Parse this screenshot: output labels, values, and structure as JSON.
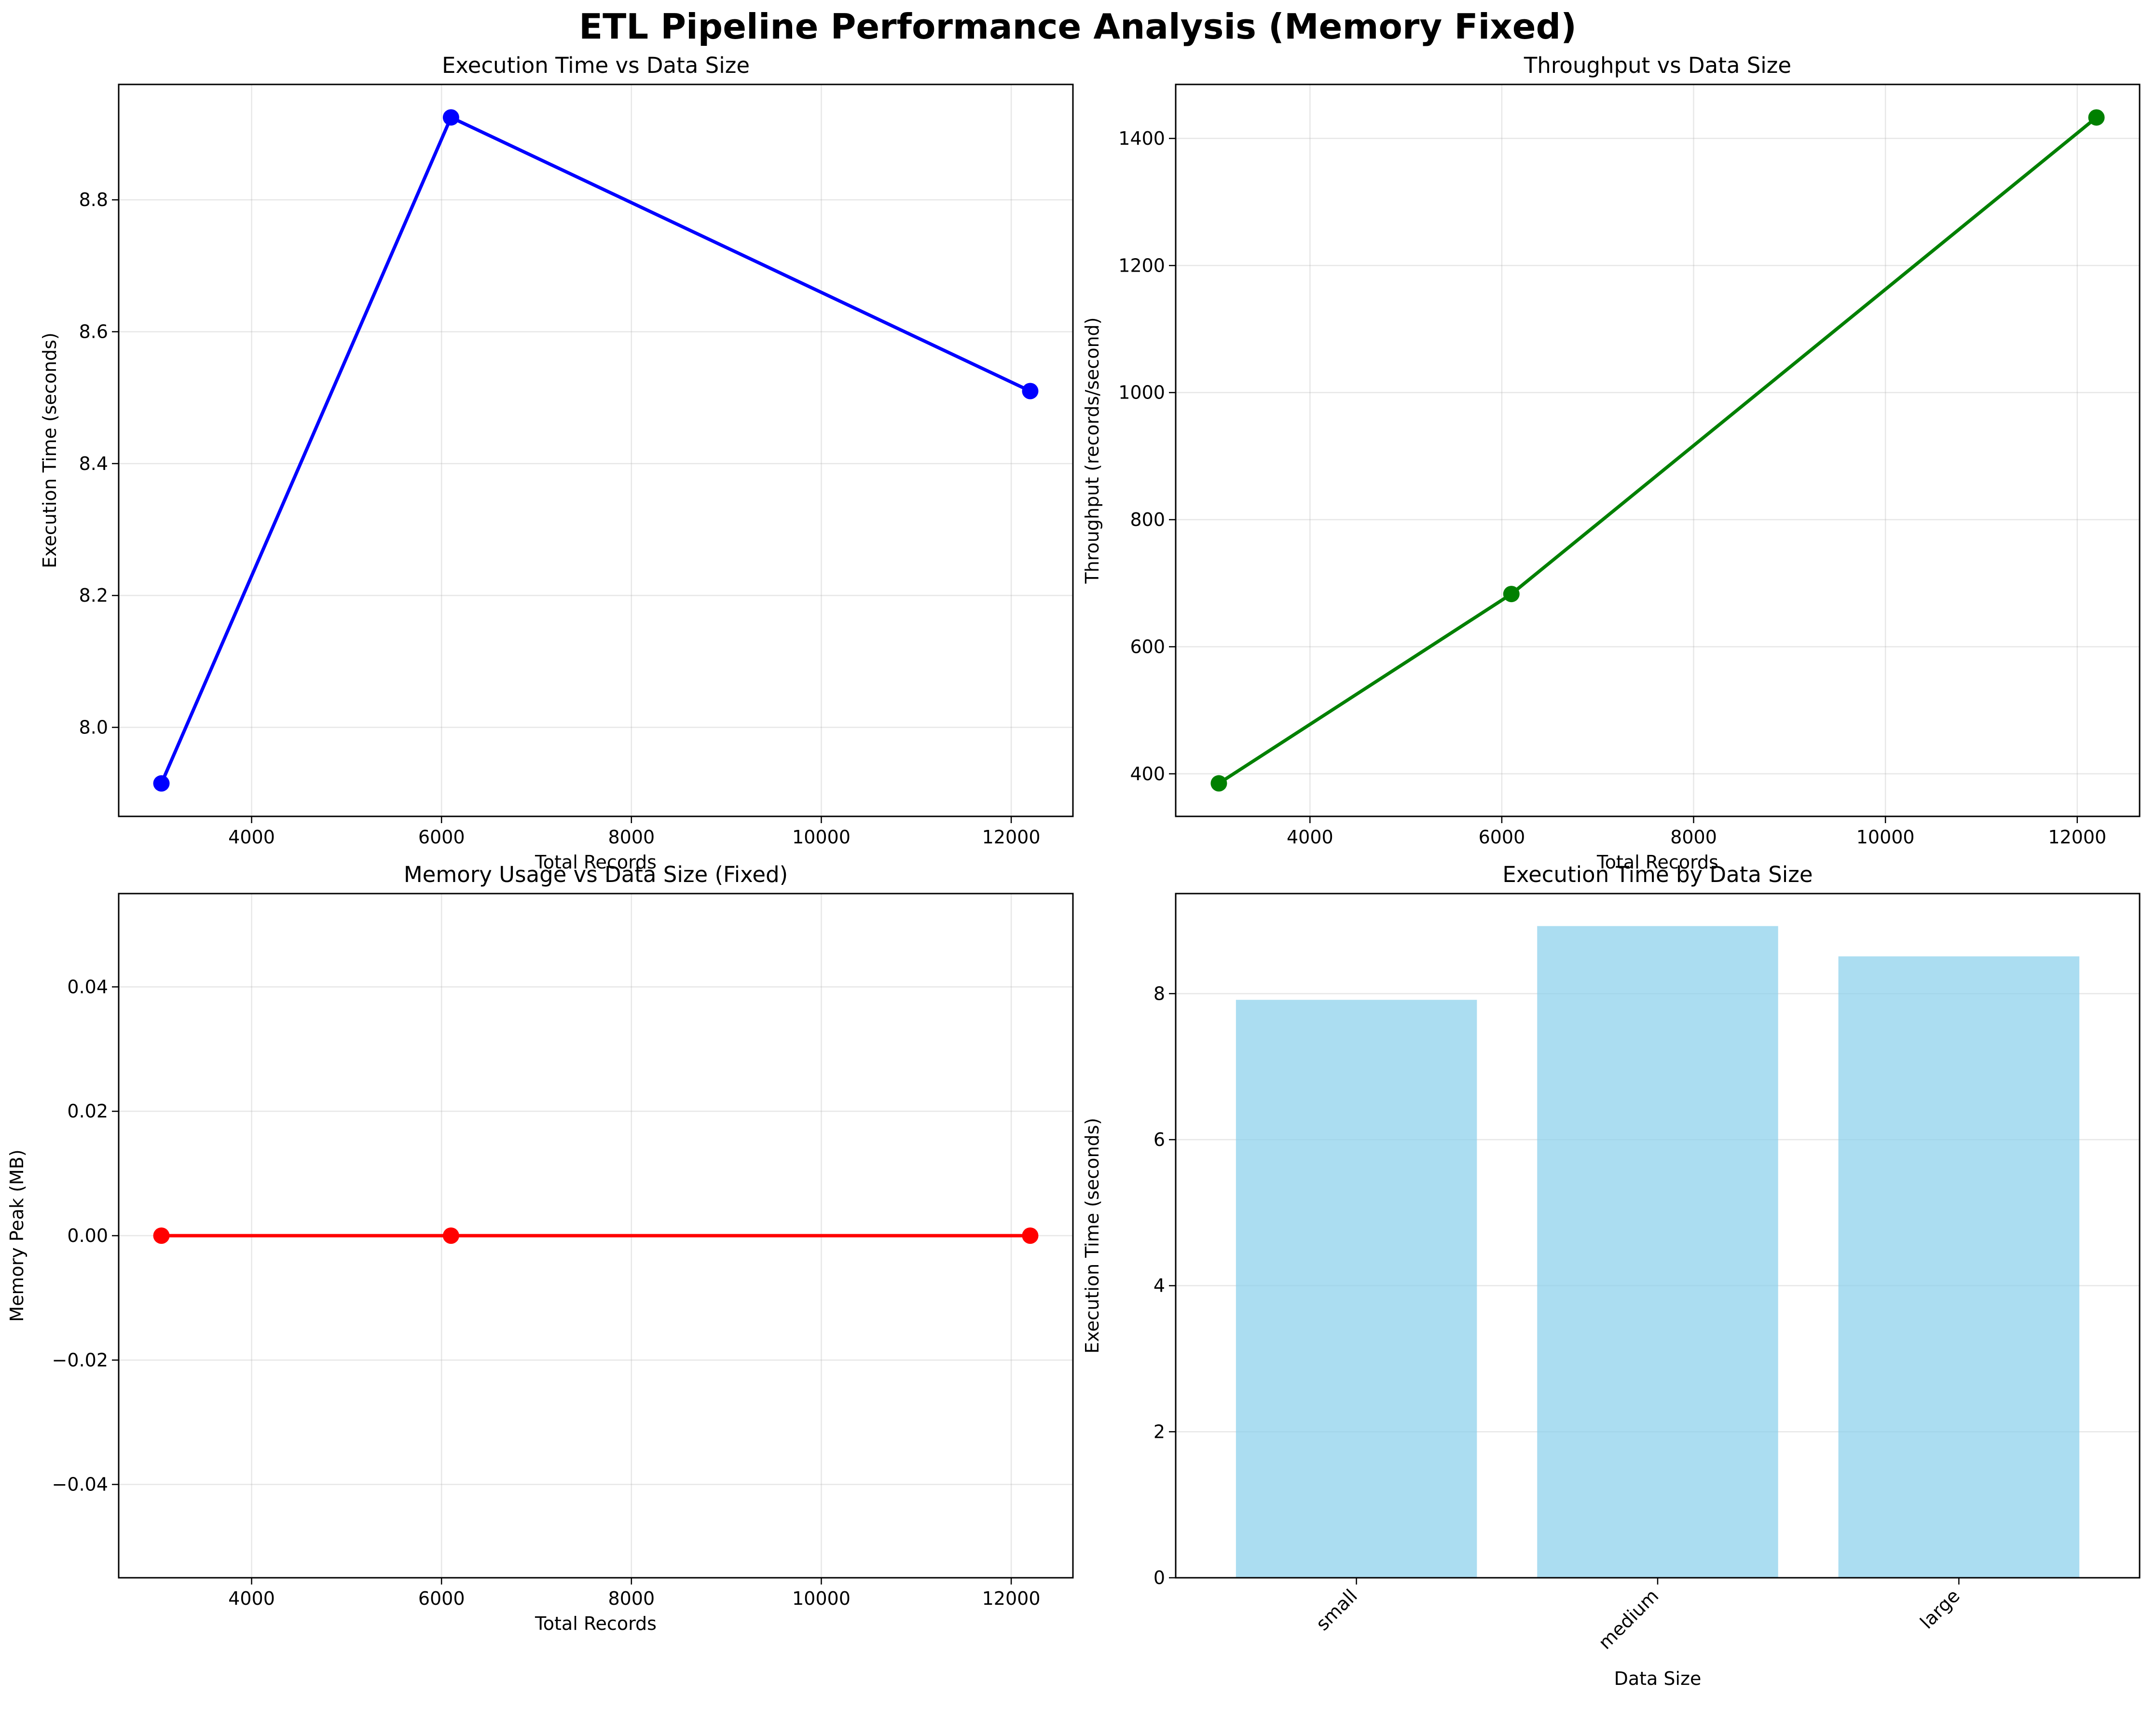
{
  "figure": {
    "title": "ETL Pipeline Performance Analysis (Memory Fixed)"
  },
  "chart_data": [
    {
      "type": "line",
      "title": "Execution Time vs Data Size",
      "xlabel": "Total Records",
      "ylabel": "Execution Time (seconds)",
      "x": [
        3050,
        6100,
        12200
      ],
      "series": [
        {
          "values": [
            7.915,
            8.925,
            8.51
          ],
          "color": "#0000ff"
        }
      ],
      "xlim": [
        2600,
        12650
      ],
      "ylim": [
        7.865,
        8.975
      ],
      "xticks": [
        4000,
        6000,
        8000,
        10000,
        12000
      ],
      "xtick_labels": [
        "4000",
        "6000",
        "8000",
        "10000",
        "12000"
      ],
      "yticks": [
        8.0,
        8.2,
        8.4,
        8.6,
        8.8
      ],
      "ytick_labels": [
        "8.0",
        "8.2",
        "8.4",
        "8.6",
        "8.8"
      ],
      "grid": true
    },
    {
      "type": "line",
      "title": "Throughput vs Data Size",
      "xlabel": "Total Records",
      "ylabel": "Throughput (records/second)",
      "x": [
        3050,
        6100,
        12200
      ],
      "series": [
        {
          "values": [
            385,
            683,
            1433
          ],
          "color": "#008000"
        }
      ],
      "xlim": [
        2600,
        12650
      ],
      "ylim": [
        333,
        1485
      ],
      "xticks": [
        4000,
        6000,
        8000,
        10000,
        12000
      ],
      "xtick_labels": [
        "4000",
        "6000",
        "8000",
        "10000",
        "12000"
      ],
      "yticks": [
        400,
        600,
        800,
        1000,
        1200,
        1400
      ],
      "ytick_labels": [
        "400",
        "600",
        "800",
        "1000",
        "1200",
        "1400"
      ],
      "grid": true
    },
    {
      "type": "line",
      "title": "Memory Usage vs Data Size (Fixed)",
      "xlabel": "Total Records",
      "ylabel": "Memory Peak (MB)",
      "x": [
        3050,
        6100,
        12200
      ],
      "series": [
        {
          "values": [
            0,
            0,
            0
          ],
          "color": "#ff0000"
        }
      ],
      "xlim": [
        2600,
        12650
      ],
      "ylim": [
        -0.055,
        0.055
      ],
      "xticks": [
        4000,
        6000,
        8000,
        10000,
        12000
      ],
      "xtick_labels": [
        "4000",
        "6000",
        "8000",
        "10000",
        "12000"
      ],
      "yticks": [
        -0.04,
        -0.02,
        0.0,
        0.02,
        0.04
      ],
      "ytick_labels": [
        "−0.04",
        "−0.02",
        "0.00",
        "0.02",
        "0.04"
      ],
      "grid": true
    },
    {
      "type": "bar",
      "title": "Execution Time by Data Size",
      "xlabel": "Data Size",
      "ylabel": "Execution Time (seconds)",
      "categories": [
        "small",
        "medium",
        "large"
      ],
      "values": [
        7.915,
        8.925,
        8.51
      ],
      "color": "#87ceeb",
      "ylim": [
        0,
        9.37
      ],
      "yticks": [
        0,
        2,
        4,
        6,
        8
      ],
      "ytick_labels": [
        "0",
        "2",
        "4",
        "6",
        "8"
      ],
      "xtick_rotation": 45,
      "grid": true
    }
  ]
}
